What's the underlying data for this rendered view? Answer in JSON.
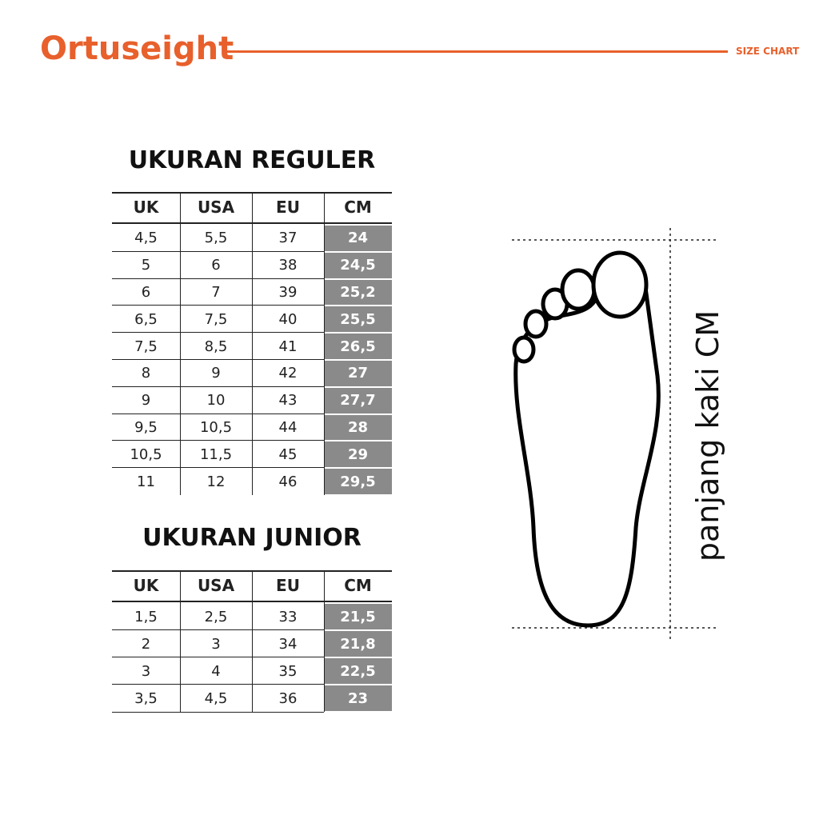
{
  "header": {
    "brand": "Ortuseight",
    "label": "SIZE CHART"
  },
  "tables": [
    {
      "title": "UKURAN REGULER",
      "columns": [
        "UK",
        "USA",
        "EU",
        "CM"
      ],
      "rows": [
        [
          "4,5",
          "5,5",
          "37",
          "24"
        ],
        [
          "5",
          "6",
          "38",
          "24,5"
        ],
        [
          "6",
          "7",
          "39",
          "25,2"
        ],
        [
          "6,5",
          "7,5",
          "40",
          "25,5"
        ],
        [
          "7,5",
          "8,5",
          "41",
          "26,5"
        ],
        [
          "8",
          "9",
          "42",
          "27"
        ],
        [
          "9",
          "10",
          "43",
          "27,7"
        ],
        [
          "9,5",
          "10,5",
          "44",
          "28"
        ],
        [
          "10,5",
          "11,5",
          "45",
          "29"
        ],
        [
          "11",
          "12",
          "46",
          "29,5"
        ]
      ]
    },
    {
      "title": "UKURAN JUNIOR",
      "columns": [
        "UK",
        "USA",
        "EU",
        "CM"
      ],
      "rows": [
        [
          "1,5",
          "2,5",
          "33",
          "21,5"
        ],
        [
          "2",
          "3",
          "34",
          "21,8"
        ],
        [
          "3",
          "4",
          "35",
          "22,5"
        ],
        [
          "3,5",
          "4,5",
          "36",
          "23"
        ]
      ]
    }
  ],
  "diagram": {
    "label": "panjang kaki CM"
  }
}
